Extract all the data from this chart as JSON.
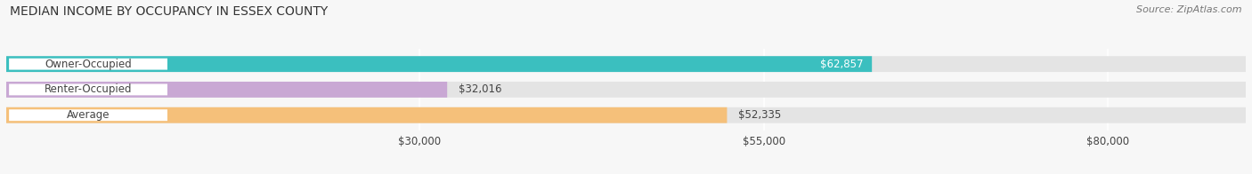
{
  "title": "MEDIAN INCOME BY OCCUPANCY IN ESSEX COUNTY",
  "source": "Source: ZipAtlas.com",
  "categories": [
    "Owner-Occupied",
    "Renter-Occupied",
    "Average"
  ],
  "values": [
    62857,
    32016,
    52335
  ],
  "bar_colors": [
    "#3bbfbf",
    "#c9a8d4",
    "#f5c07a"
  ],
  "bar_bg_color": "#e4e4e4",
  "value_labels": [
    "$62,857",
    "$32,016",
    "$52,335"
  ],
  "value_inside": [
    true,
    false,
    false
  ],
  "x_ticks": [
    30000,
    55000,
    80000
  ],
  "x_tick_labels": [
    "$30,000",
    "$55,000",
    "$80,000"
  ],
  "xlim": [
    0,
    90000
  ],
  "title_fontsize": 10,
  "source_fontsize": 8,
  "label_fontsize": 8.5,
  "bar_label_fontsize": 8.5,
  "background_color": "#f7f7f7",
  "bar_height": 0.62,
  "label_color": "#444444",
  "title_color": "#333333",
  "source_color": "#777777",
  "white": "#ffffff"
}
